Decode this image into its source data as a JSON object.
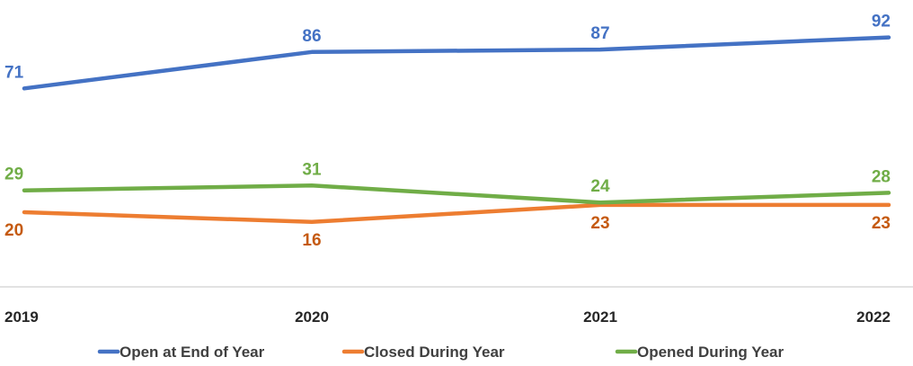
{
  "chart_data": {
    "type": "line",
    "categories": [
      "2019",
      "2020",
      "2021",
      "2022"
    ],
    "series": [
      {
        "name": "Open at End of Year",
        "values": [
          71,
          86,
          87,
          92
        ],
        "color": "#4472C4"
      },
      {
        "name": "Closed During Year",
        "values": [
          20,
          16,
          23,
          23
        ],
        "color": "#ED7D31"
      },
      {
        "name": "Opened During Year",
        "values": [
          29,
          31,
          24,
          28
        ],
        "color": "#70AD47"
      }
    ],
    "label_colors": [
      "#4472C4",
      "#C55A11",
      "#70AD47"
    ],
    "ylim": [
      0,
      100
    ],
    "grid": false,
    "legend": "bottom",
    "data_labels": true
  }
}
